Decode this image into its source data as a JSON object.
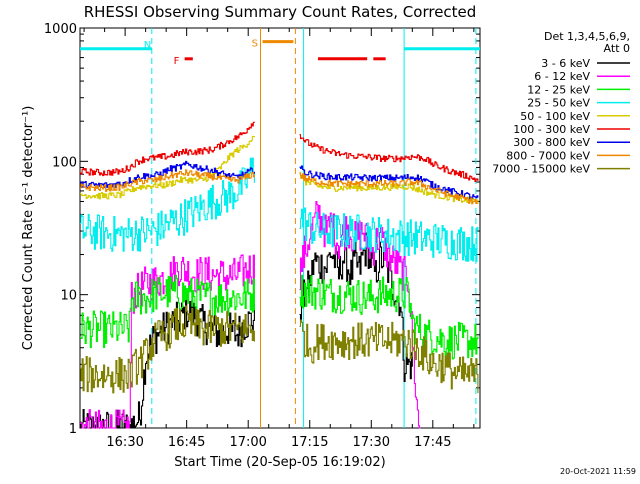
{
  "chart_data": {
    "type": "line",
    "title": "RHESSI Observing Summary Count Rates, Corrected",
    "xlabel": "Start Time (20-Sep-05 16:19:02)",
    "ylabel": "Corrected Count Rate (s⁻¹ detector⁻¹)",
    "yscale": "log",
    "ylim": [
      1,
      1000
    ],
    "xlim_minutes": [
      0,
      97.5
    ],
    "y_ticks": [
      {
        "v": 1,
        "label": "1"
      },
      {
        "v": 10,
        "label": "10"
      },
      {
        "v": 100,
        "label": "100"
      },
      {
        "v": 1000,
        "label": "1000"
      }
    ],
    "x_ticks": [
      {
        "m": 11,
        "label": "16:30"
      },
      {
        "m": 26,
        "label": "16:45"
      },
      {
        "m": 41,
        "label": "17:00"
      },
      {
        "m": 56,
        "label": "17:15"
      },
      {
        "m": 71,
        "label": "17:30"
      },
      {
        "m": 86,
        "label": "17:45"
      }
    ],
    "legend_header": [
      "Det 1,3,4,5,6,9,",
      "Att 0"
    ],
    "gap_minutes": [
      42.5,
      53.5
    ],
    "series": [
      {
        "name": "3 - 6 keV",
        "color": "#000000",
        "values": [
          [
            0,
            1
          ],
          [
            12,
            1
          ],
          [
            14.5,
            1.2
          ],
          [
            16,
            3.5
          ],
          [
            18,
            4.8
          ],
          [
            22,
            6
          ],
          [
            24,
            6.5
          ],
          [
            26,
            7.5
          ],
          [
            28,
            7
          ],
          [
            30,
            6
          ],
          [
            32,
            5.5
          ],
          [
            34,
            5
          ],
          [
            36,
            5.5
          ],
          [
            38,
            5
          ],
          [
            40,
            6
          ],
          [
            42,
            6.5
          ],
          [
            53.5,
            8
          ],
          [
            56,
            12
          ],
          [
            57,
            18
          ],
          [
            58,
            17
          ],
          [
            60,
            16
          ],
          [
            61,
            21
          ],
          [
            62,
            18
          ],
          [
            63,
            14
          ],
          [
            64,
            19
          ],
          [
            65,
            17
          ],
          [
            66,
            14
          ],
          [
            67,
            18
          ],
          [
            68,
            15
          ],
          [
            69,
            20
          ],
          [
            70,
            23
          ],
          [
            71,
            17
          ],
          [
            72,
            14
          ],
          [
            73,
            19
          ],
          [
            74,
            18
          ],
          [
            75,
            15
          ],
          [
            76,
            12
          ],
          [
            77,
            10
          ],
          [
            78,
            9
          ],
          [
            79,
            3
          ],
          [
            81,
            3
          ]
        ]
      },
      {
        "name": "6 - 12 keV",
        "color": "#ff00ff",
        "values": [
          [
            0,
            1
          ],
          [
            12,
            1
          ],
          [
            12.5,
            9.5
          ],
          [
            16,
            12
          ],
          [
            18,
            12.5
          ],
          [
            22,
            14
          ],
          [
            24,
            16
          ],
          [
            26,
            15
          ],
          [
            28,
            14
          ],
          [
            30,
            14.5
          ],
          [
            32,
            14
          ],
          [
            34,
            14
          ],
          [
            36,
            13.5
          ],
          [
            38,
            14
          ],
          [
            40,
            15
          ],
          [
            42,
            16
          ],
          [
            53.5,
            15
          ],
          [
            56,
            28
          ],
          [
            58,
            42
          ],
          [
            60,
            28
          ],
          [
            61,
            35
          ],
          [
            63,
            24
          ],
          [
            65,
            32
          ],
          [
            67,
            26
          ],
          [
            69,
            30
          ],
          [
            71,
            21
          ],
          [
            73,
            28
          ],
          [
            75,
            20
          ],
          [
            77,
            17
          ],
          [
            79,
            14
          ],
          [
            80,
            13
          ],
          [
            82,
            1.5
          ],
          [
            83,
            0.8
          ]
        ]
      },
      {
        "name": "12 - 25 keV",
        "color": "#00ee00",
        "values": [
          [
            0,
            5.5
          ],
          [
            12,
            5.5
          ],
          [
            12.5,
            9.5
          ],
          [
            16,
            9.5
          ],
          [
            18,
            10
          ],
          [
            22,
            10.5
          ],
          [
            26,
            10
          ],
          [
            30,
            9.5
          ],
          [
            34,
            9.5
          ],
          [
            38,
            9.5
          ],
          [
            42,
            10
          ],
          [
            53.5,
            11
          ],
          [
            58,
            10.5
          ],
          [
            62,
            10
          ],
          [
            66,
            10
          ],
          [
            70,
            9.5
          ],
          [
            74,
            10
          ],
          [
            78,
            10
          ],
          [
            80,
            10
          ],
          [
            81,
            6
          ],
          [
            84,
            5
          ],
          [
            90,
            4.5
          ],
          [
            97,
            4.5
          ]
        ]
      },
      {
        "name": "25 - 50 keV",
        "color": "#00eeee",
        "values": [
          [
            0,
            30
          ],
          [
            6,
            29
          ],
          [
            10,
            28
          ],
          [
            14,
            29
          ],
          [
            18,
            30
          ],
          [
            20,
            32
          ],
          [
            22,
            35
          ],
          [
            24,
            36
          ],
          [
            26,
            40
          ],
          [
            28,
            42
          ],
          [
            30,
            46
          ],
          [
            32,
            50
          ],
          [
            34,
            52
          ],
          [
            36,
            55
          ],
          [
            38,
            60
          ],
          [
            40,
            68
          ],
          [
            42,
            88
          ],
          [
            53.5,
            40
          ],
          [
            55,
            34
          ],
          [
            57,
            31
          ],
          [
            60,
            30
          ],
          [
            65,
            30
          ],
          [
            70,
            29
          ],
          [
            75,
            28
          ],
          [
            80,
            27
          ],
          [
            85,
            26
          ],
          [
            90,
            25
          ],
          [
            97,
            24
          ]
        ]
      },
      {
        "name": "50 - 100 keV",
        "color": "#d8cc00",
        "values": [
          [
            0,
            56
          ],
          [
            6,
            55
          ],
          [
            10,
            56
          ],
          [
            12,
            60
          ],
          [
            14,
            64
          ],
          [
            16,
            65
          ],
          [
            18,
            66
          ],
          [
            20,
            66
          ],
          [
            22,
            68
          ],
          [
            24,
            72
          ],
          [
            26,
            73
          ],
          [
            28,
            72
          ],
          [
            30,
            73
          ],
          [
            32,
            78
          ],
          [
            34,
            88
          ],
          [
            36,
            105
          ],
          [
            38,
            120
          ],
          [
            40,
            130
          ],
          [
            42,
            150
          ],
          [
            53.5,
            80
          ],
          [
            55,
            70
          ],
          [
            58,
            65
          ],
          [
            62,
            63
          ],
          [
            66,
            64
          ],
          [
            70,
            63
          ],
          [
            75,
            64
          ],
          [
            80,
            65
          ],
          [
            82,
            62
          ],
          [
            85,
            58
          ],
          [
            88,
            55
          ],
          [
            92,
            52
          ],
          [
            97,
            50
          ]
        ]
      },
      {
        "name": "100 - 300 keV",
        "color": "#ee0000",
        "values": [
          [
            0,
            84
          ],
          [
            6,
            82
          ],
          [
            10,
            84
          ],
          [
            12,
            90
          ],
          [
            14,
            100
          ],
          [
            16,
            105
          ],
          [
            18,
            106
          ],
          [
            20,
            108
          ],
          [
            22,
            110
          ],
          [
            24,
            115
          ],
          [
            26,
            118
          ],
          [
            28,
            118
          ],
          [
            30,
            120
          ],
          [
            32,
            122
          ],
          [
            34,
            130
          ],
          [
            36,
            140
          ],
          [
            38,
            150
          ],
          [
            40,
            165
          ],
          [
            42,
            195
          ],
          [
            53.5,
            160
          ],
          [
            55,
            140
          ],
          [
            58,
            125
          ],
          [
            62,
            115
          ],
          [
            66,
            110
          ],
          [
            70,
            108
          ],
          [
            74,
            105
          ],
          [
            78,
            105
          ],
          [
            80,
            108
          ],
          [
            82,
            108
          ],
          [
            84,
            105
          ],
          [
            86,
            95
          ],
          [
            90,
            85
          ],
          [
            94,
            78
          ],
          [
            97,
            72
          ]
        ]
      },
      {
        "name": "300 - 800 keV",
        "color": "#0000ee",
        "values": [
          [
            0,
            67
          ],
          [
            6,
            66
          ],
          [
            10,
            68
          ],
          [
            12,
            72
          ],
          [
            14,
            76
          ],
          [
            16,
            78
          ],
          [
            18,
            78
          ],
          [
            20,
            82
          ],
          [
            22,
            88
          ],
          [
            24,
            90
          ],
          [
            26,
            95
          ],
          [
            28,
            92
          ],
          [
            30,
            88
          ],
          [
            32,
            86
          ],
          [
            34,
            82
          ],
          [
            36,
            78
          ],
          [
            38,
            76
          ],
          [
            40,
            80
          ],
          [
            42,
            86
          ],
          [
            53.5,
            90
          ],
          [
            55,
            82
          ],
          [
            58,
            78
          ],
          [
            62,
            76
          ],
          [
            66,
            76
          ],
          [
            70,
            75
          ],
          [
            74,
            75
          ],
          [
            78,
            75
          ],
          [
            80,
            76
          ],
          [
            82,
            76
          ],
          [
            84,
            72
          ],
          [
            86,
            66
          ],
          [
            90,
            60
          ],
          [
            94,
            56
          ],
          [
            97,
            52
          ]
        ]
      },
      {
        "name": "800 - 7000 keV",
        "color": "#ee8800",
        "values": [
          [
            0,
            64
          ],
          [
            6,
            63
          ],
          [
            10,
            64
          ],
          [
            12,
            68
          ],
          [
            14,
            70
          ],
          [
            16,
            72
          ],
          [
            18,
            72
          ],
          [
            20,
            75
          ],
          [
            22,
            78
          ],
          [
            24,
            80
          ],
          [
            26,
            82
          ],
          [
            28,
            80
          ],
          [
            30,
            78
          ],
          [
            32,
            77
          ],
          [
            34,
            75
          ],
          [
            36,
            73
          ],
          [
            38,
            72
          ],
          [
            40,
            75
          ],
          [
            42,
            80
          ],
          [
            53.5,
            80
          ],
          [
            55,
            74
          ],
          [
            58,
            70
          ],
          [
            62,
            68
          ],
          [
            66,
            68
          ],
          [
            70,
            68
          ],
          [
            74,
            68
          ],
          [
            78,
            68
          ],
          [
            80,
            70
          ],
          [
            82,
            69
          ],
          [
            84,
            66
          ],
          [
            86,
            62
          ],
          [
            90,
            56
          ],
          [
            94,
            52
          ],
          [
            97,
            49
          ]
        ]
      },
      {
        "name": "7000 - 15000 keV",
        "color": "#808000",
        "values": [
          [
            0,
            2.5
          ],
          [
            12,
            2.5
          ],
          [
            14,
            3
          ],
          [
            16,
            3.5
          ],
          [
            18,
            4.5
          ],
          [
            20,
            5
          ],
          [
            22,
            5.5
          ],
          [
            24,
            6
          ],
          [
            26,
            6
          ],
          [
            30,
            5.5
          ],
          [
            34,
            5.5
          ],
          [
            38,
            5.5
          ],
          [
            42,
            5.5
          ],
          [
            53.5,
            5.5
          ],
          [
            56,
            4
          ],
          [
            58,
            4.5
          ],
          [
            62,
            4.5
          ],
          [
            66,
            4.5
          ],
          [
            70,
            4.5
          ],
          [
            74,
            4.5
          ],
          [
            78,
            4.5
          ],
          [
            80,
            4.5
          ],
          [
            82,
            4
          ],
          [
            84,
            3.5
          ],
          [
            86,
            3
          ],
          [
            88,
            3
          ],
          [
            92,
            2.5
          ],
          [
            97,
            2.5
          ]
        ]
      }
    ],
    "annotations": {
      "flags": [
        {
          "label": "N",
          "color": "#00eeee",
          "y_frac": 0.052,
          "segments": [
            [
              0,
              17.5
            ],
            [
              79,
              97.5
            ]
          ]
        },
        {
          "label": "S",
          "color": "#ee8800",
          "y_frac": 0.034,
          "segments": [
            [
              44.5,
              52
            ]
          ]
        },
        {
          "label": "F",
          "color": "#ee0000",
          "y_frac": 0.077,
          "segments": [
            [
              25.5,
              27.5
            ],
            [
              58,
              70
            ],
            [
              71.5,
              74.5
            ]
          ]
        }
      ],
      "vlines": [
        {
          "m": 17.5,
          "color": "#00eeee",
          "dash": true
        },
        {
          "m": 44,
          "color": "#ee8800",
          "dash": false
        },
        {
          "m": 52.5,
          "color": "#ee8800",
          "dash": true
        },
        {
          "m": 54.5,
          "color": "#00eeee",
          "dash": false
        },
        {
          "m": 79,
          "color": "#00eeee",
          "dash": false
        },
        {
          "m": 96.5,
          "color": "#00eeee",
          "dash": true
        }
      ]
    }
  },
  "timestamp": "20-Oct-2021 11:59"
}
